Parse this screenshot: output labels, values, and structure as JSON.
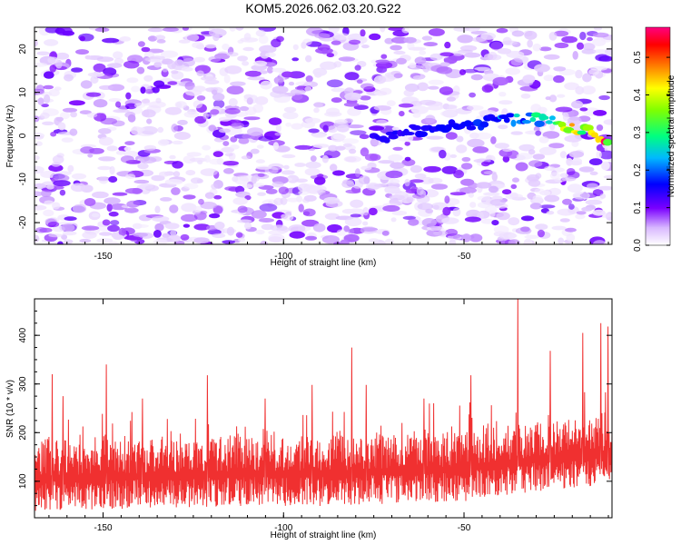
{
  "title": "KOM5.2026.062.03.20.G22",
  "chart_data": [
    {
      "type": "heatmap",
      "title": "KOM5.2026.062.03.20.G22",
      "xlabel": "Height of straight line (km)",
      "ylabel": "Frequency (Hz)",
      "xlim": [
        -169,
        -9
      ],
      "ylim": [
        -25,
        25
      ],
      "xticks": [
        -150,
        -100,
        -50
      ],
      "xtick_labels": [
        "-150",
        "-100",
        "-50"
      ],
      "yticks": [
        20,
        10,
        0,
        -10,
        -20
      ],
      "ytick_labels": [
        "20",
        "10",
        "0",
        "-10",
        "-20"
      ],
      "background_noise_level": 0.06,
      "signal_track": {
        "x": [
          -75,
          -65,
          -55,
          -45,
          -35,
          -30,
          -25,
          -20,
          -15,
          -10
        ],
        "y": [
          -1,
          1,
          2,
          3,
          4,
          4,
          3,
          2,
          1,
          -1
        ],
        "amplitude": [
          0.12,
          0.15,
          0.18,
          0.2,
          0.25,
          0.3,
          0.35,
          0.45,
          0.52,
          0.55
        ]
      },
      "colorbar": {
        "label": "Normalized spectral amplitude",
        "range": [
          0.0,
          0.58
        ],
        "ticks": [
          0.0,
          0.1,
          0.2,
          0.3,
          0.4,
          0.5
        ],
        "tick_labels": [
          "0.0",
          "0.1",
          "0.2",
          "0.3",
          "0.4",
          "0.5"
        ],
        "colors": [
          "#ffffff",
          "#7a00ff",
          "#0000ff",
          "#00e5ff",
          "#00ff00",
          "#ffff00",
          "#ff8000",
          "#ff0000",
          "#ff0080"
        ]
      }
    },
    {
      "type": "line",
      "xlabel": "Height of straight line (km)",
      "ylabel": "SNR (10 * v/v)",
      "xlim": [
        -169,
        -9
      ],
      "ylim": [
        25,
        475
      ],
      "xticks": [
        -150,
        -100,
        -50
      ],
      "xtick_labels": [
        "-150",
        "-100",
        "-50"
      ],
      "yticks": [
        100,
        200,
        300,
        400
      ],
      "ytick_labels": [
        "100",
        "200",
        "300",
        "400"
      ],
      "color": "#f03030",
      "trend_x": [
        -169,
        -140,
        -110,
        -90,
        -70,
        -50,
        -40,
        -30,
        -20,
        -9
      ],
      "trend_y": [
        105,
        110,
        115,
        115,
        120,
        125,
        135,
        145,
        150,
        155
      ],
      "spread": 60,
      "peaks": [
        {
          "x": -164,
          "y": 320
        },
        {
          "x": -161,
          "y": 275
        },
        {
          "x": -149,
          "y": 340
        },
        {
          "x": -139,
          "y": 270
        },
        {
          "x": -121,
          "y": 318
        },
        {
          "x": -105,
          "y": 270
        },
        {
          "x": -92,
          "y": 298
        },
        {
          "x": -81,
          "y": 375
        },
        {
          "x": -77,
          "y": 298
        },
        {
          "x": -61,
          "y": 270
        },
        {
          "x": -48,
          "y": 318
        },
        {
          "x": -35,
          "y": 480
        },
        {
          "x": -26,
          "y": 368
        },
        {
          "x": -17,
          "y": 405
        },
        {
          "x": -12,
          "y": 425
        },
        {
          "x": -10,
          "y": 418
        }
      ]
    }
  ]
}
